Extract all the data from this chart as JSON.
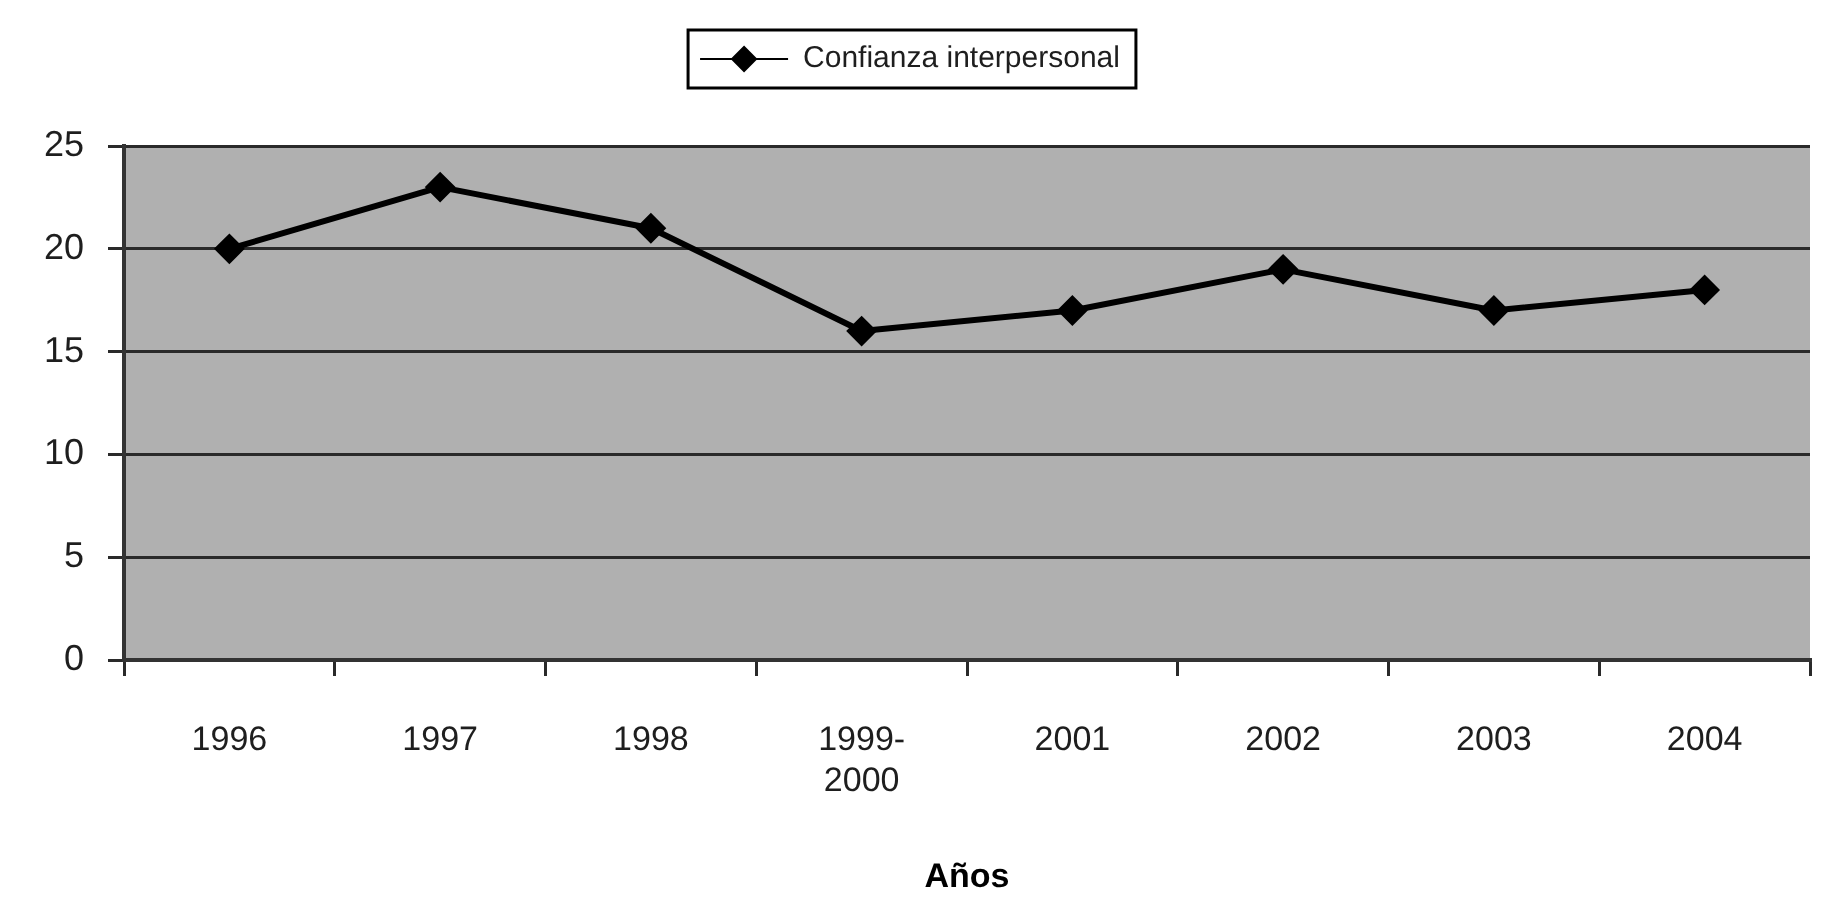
{
  "chart_data": {
    "type": "line",
    "categories": [
      "1996",
      "1997",
      "1998",
      "1999-2000",
      "2001",
      "2002",
      "2003",
      "2004"
    ],
    "series": [
      {
        "name": "Confianza interpersonal",
        "color": "#000000",
        "values": [
          20,
          23,
          21,
          16,
          17,
          19,
          17,
          18
        ]
      }
    ],
    "xlabel": "Años",
    "ylim": [
      0,
      25
    ],
    "yticks": [
      0,
      5,
      10,
      15,
      20,
      25
    ],
    "grid": "y",
    "legend": "top",
    "marker": "diamond",
    "line_style": "solid"
  }
}
